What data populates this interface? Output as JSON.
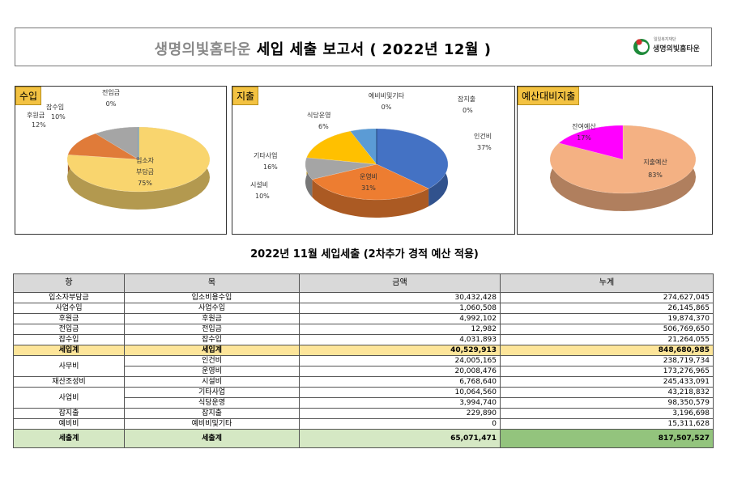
{
  "header": {
    "title_part1": "생명의빛홈타운",
    "title_part2": "세입 세출 보고서 ( 2022년 12월 )",
    "logo_small": "일일복지재단",
    "logo_name": "생명의빛홈타운"
  },
  "charts": {
    "income": {
      "tag": "수입",
      "labels": [
        {
          "name": "입소자",
          "name2": "부담금",
          "pct": "75%"
        },
        {
          "name": "후원금",
          "pct": "12%"
        },
        {
          "name": "잡수입",
          "pct": "10%"
        },
        {
          "name": "전입금",
          "pct": "0%"
        }
      ]
    },
    "expense": {
      "tag": "지출",
      "labels": [
        {
          "name": "인건비",
          "pct": "37%"
        },
        {
          "name": "운영비",
          "pct": "31%"
        },
        {
          "name": "시설비",
          "pct": "10%"
        },
        {
          "name": "기타사업",
          "pct": "16%"
        },
        {
          "name": "식당운영",
          "pct": "6%"
        },
        {
          "name": "예비비및기타",
          "pct": "0%"
        },
        {
          "name": "잡지출",
          "pct": "0%"
        }
      ]
    },
    "budget": {
      "tag": "예산대비지출",
      "labels": [
        {
          "name": "지출예산",
          "pct": "83%"
        },
        {
          "name": "잔여예산",
          "pct": "17%"
        }
      ]
    }
  },
  "chart_data": [
    {
      "type": "pie",
      "title": "수입",
      "categories": [
        "입소자부담금",
        "후원금",
        "잡수입",
        "전입금"
      ],
      "values": [
        75,
        12,
        10,
        0
      ],
      "colors": [
        "#f9d56e",
        "#e07b39",
        "#a5a5a5",
        "#5b9bd5"
      ]
    },
    {
      "type": "pie",
      "title": "지출",
      "categories": [
        "인건비",
        "운영비",
        "시설비",
        "기타사업",
        "식당운영",
        "예비비및기타",
        "잡지출"
      ],
      "values": [
        37,
        31,
        10,
        16,
        6,
        0,
        0
      ],
      "colors": [
        "#4472c4",
        "#ed7d31",
        "#a5a5a5",
        "#ffc000",
        "#5b9bd5",
        "#70ad47",
        "#264478"
      ]
    },
    {
      "type": "pie",
      "title": "예산대비지출",
      "categories": [
        "지출예산",
        "잔여예산"
      ],
      "values": [
        83,
        17
      ],
      "colors": [
        "#f4b183",
        "#ff00ff"
      ]
    }
  ],
  "report": {
    "subtitle": "2022년 11월 세입세출 (2차추가 경적 예산 적용)",
    "columns": [
      "항",
      "목",
      "금액",
      "누계"
    ],
    "rows": [
      {
        "hang": "입소자부담금",
        "mok": "입소비용수입",
        "amount": "30,432,428",
        "total": "274,627,045"
      },
      {
        "hang": "사업수입",
        "mok": "사업수입",
        "amount": "1,060,508",
        "total": "26,145,865"
      },
      {
        "hang": "후원금",
        "mok": "후원금",
        "amount": "4,992,102",
        "total": "19,874,370"
      },
      {
        "hang": "전입금",
        "mok": "전입금",
        "amount": "12,982",
        "total": "506,769,650"
      },
      {
        "hang": "잡수입",
        "mok": "잡수입",
        "amount": "4,031,893",
        "total": "21,264,055"
      },
      {
        "hang": "세입계",
        "mok": "세입계",
        "amount": "40,529,913",
        "total": "848,680,985"
      },
      {
        "hang": "사무비",
        "mok": "인건비",
        "amount": "24,005,165",
        "total": "238,719,734"
      },
      {
        "hang": "",
        "mok": "운영비",
        "amount": "20,008,476",
        "total": "173,276,965"
      },
      {
        "hang": "재산조성비",
        "mok": "시설비",
        "amount": "6,768,640",
        "total": "245,433,091"
      },
      {
        "hang": "사업비",
        "mok": "기타사업",
        "amount": "10,064,560",
        "total": "43,218,832"
      },
      {
        "hang": "",
        "mok": "식당운영",
        "amount": "3,994,740",
        "total": "98,350,579"
      },
      {
        "hang": "잡지출",
        "mok": "잡지출",
        "amount": "229,890",
        "total": "3,196,698"
      },
      {
        "hang": "예비비",
        "mok": "예비비및기타",
        "amount": "0",
        "total": "15,311,628"
      },
      {
        "hang": "세출계",
        "mok": "세출계",
        "amount": "65,071,471",
        "total": "817,507,527"
      }
    ]
  }
}
